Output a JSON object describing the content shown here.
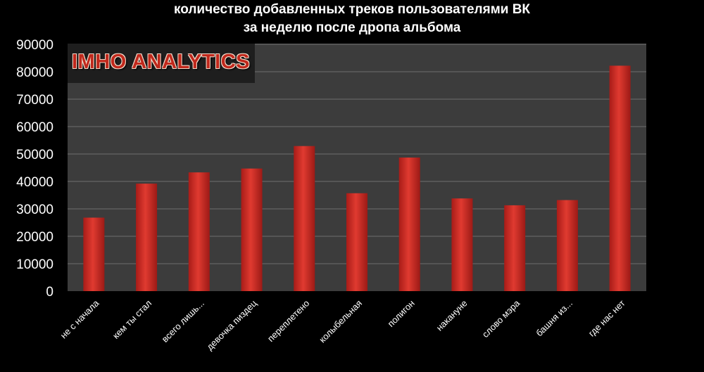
{
  "title": {
    "line1": "количество добавленных треков пользователями ВК",
    "line2": "за неделю после дропа альбома"
  },
  "watermark": "IMHO ANALYTICS",
  "colors": {
    "background": "#000000",
    "plot_area": "#3c3c3c",
    "bar": "#d42a24",
    "grid": "#6e6e6e",
    "text": "#ffffff"
  },
  "chart_data": {
    "type": "bar",
    "title": "количество добавленных треков пользователями ВК за неделю после дропа альбома",
    "xlabel": "",
    "ylabel": "",
    "categories": [
      "не с начала",
      "кем ты стал",
      "всего лишь...",
      "девочка пиздец",
      "переплетено",
      "колыбельная",
      "полигон",
      "накануне",
      "слово мэра",
      "башня из...",
      "где нас нет"
    ],
    "values": [
      26800,
      39200,
      43300,
      44700,
      52900,
      35700,
      48700,
      33800,
      31300,
      33200,
      82200
    ],
    "ylim": [
      0,
      90000
    ],
    "yticks": [
      "0",
      "10000",
      "20000",
      "30000",
      "40000",
      "50000",
      "60000",
      "70000",
      "80000",
      "90000"
    ],
    "grid": true,
    "legend": "none"
  }
}
